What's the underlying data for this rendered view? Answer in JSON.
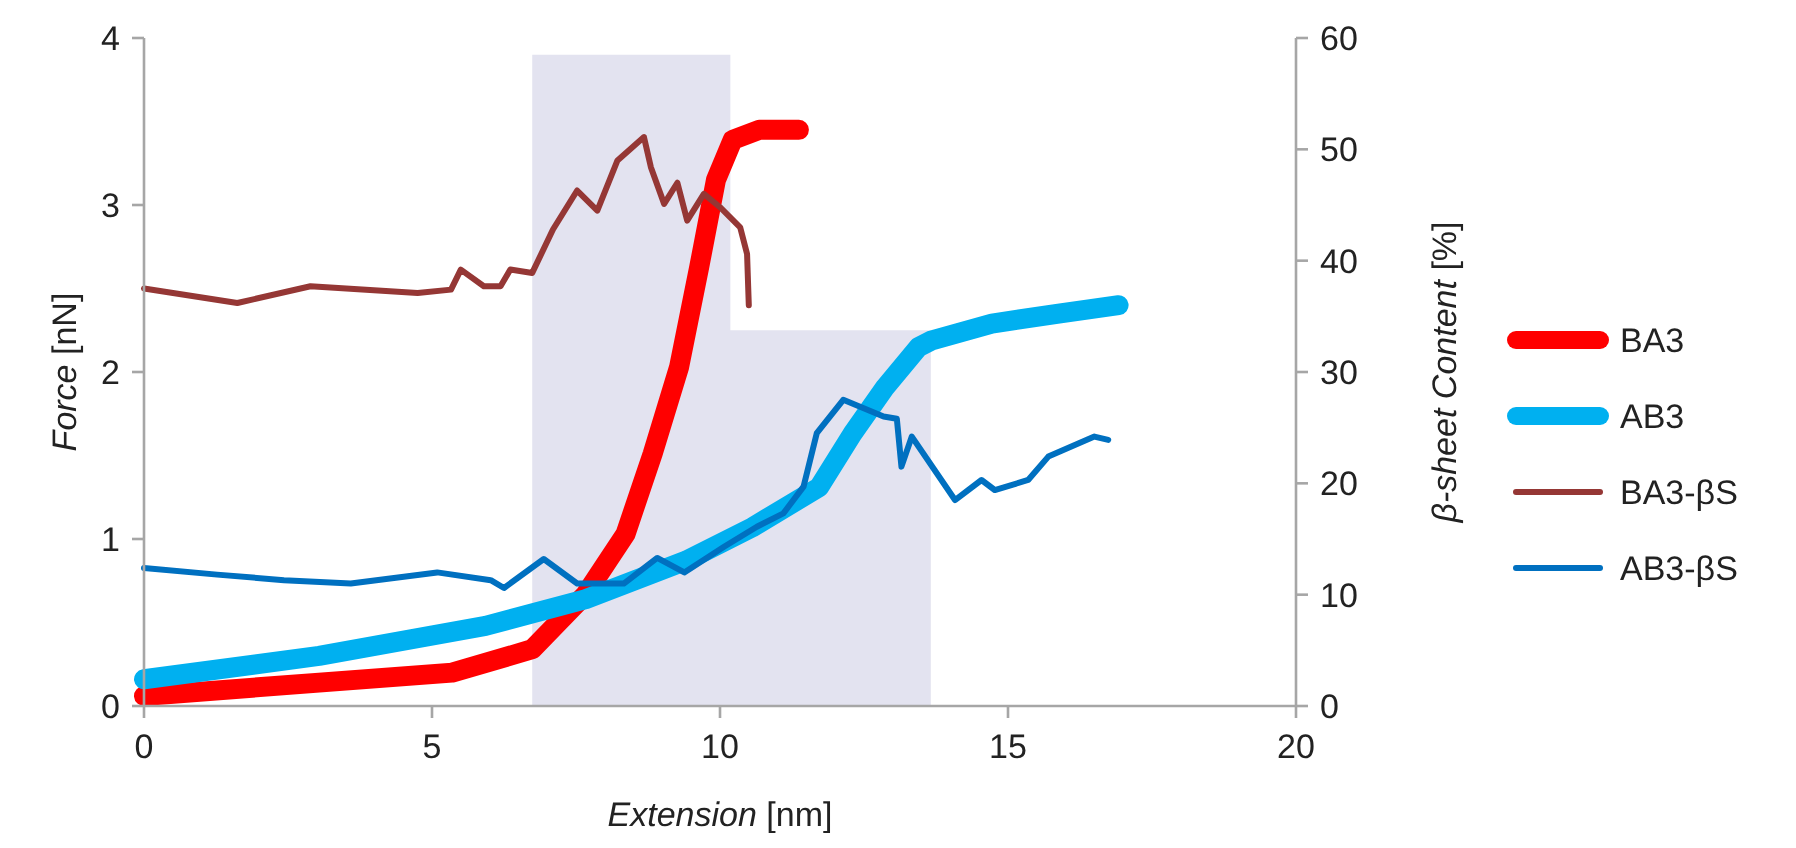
{
  "chart_data": {
    "type": "line",
    "xlabel": "Extension [nm]",
    "ylabel": "Force [nN]",
    "y2label": "β-sheet Content [%]",
    "xlim": [
      0,
      20
    ],
    "xticks": [
      0,
      5,
      10,
      15,
      20
    ],
    "ylim": [
      0,
      4
    ],
    "yticks": [
      0,
      1,
      2,
      3,
      4
    ],
    "y2lim": [
      0,
      60
    ],
    "y2ticks": [
      0,
      10,
      20,
      30,
      40,
      50,
      60
    ],
    "grid": false,
    "legend": "right",
    "marker": "none",
    "line_style": "solid",
    "series": [
      {
        "type": "area",
        "color": "#e3e3f0",
        "x": [
          6.74,
          6.74,
          10.18,
          10.18,
          13.66,
          13.66
        ],
        "values": [
          0,
          3.9,
          3.9,
          2.25,
          2.25,
          0
        ]
      },
      {
        "name": "BA3",
        "color": "#ff0000",
        "x": [
          0,
          3.04,
          5.35,
          6.74,
          7.67,
          8.36,
          8.83,
          9.29,
          9.64,
          9.93,
          10.22,
          10.68,
          11.37
        ],
        "values": [
          0.06,
          0.14,
          0.2,
          0.34,
          0.67,
          1.03,
          1.51,
          2.03,
          2.63,
          3.15,
          3.39,
          3.45,
          3.45
        ]
      },
      {
        "name": "AB3",
        "color": "#00b0f0",
        "x": [
          0,
          3.04,
          5.93,
          7.67,
          9.41,
          10.56,
          11.72,
          12.3,
          12.87,
          13.45,
          13.68,
          14.72,
          15.88,
          16.92
        ],
        "values": [
          0.16,
          0.3,
          0.48,
          0.64,
          0.87,
          1.07,
          1.31,
          1.63,
          1.91,
          2.15,
          2.19,
          2.29,
          2.35,
          2.4
        ]
      },
      {
        "name": "BA3-βS",
        "color": "#953735",
        "axis": "y2",
        "x": [
          0,
          1.62,
          2.89,
          4.75,
          5.33,
          5.5,
          5.9,
          6.19,
          6.36,
          6.74,
          7.1,
          7.52,
          7.87,
          8.22,
          8.68,
          8.8,
          9.03,
          9.26,
          9.43,
          9.72,
          10.0,
          10.35,
          10.47,
          10.5
        ],
        "values": [
          37.5,
          36.2,
          37.7,
          37.1,
          37.4,
          39.2,
          37.7,
          37.7,
          39.2,
          38.9,
          42.8,
          46.3,
          44.5,
          49.0,
          51.1,
          48.4,
          45.1,
          47.0,
          43.6,
          46.0,
          44.8,
          43.0,
          40.6,
          36.0
        ]
      },
      {
        "name": "AB3-βS",
        "color": "#0070c0",
        "axis": "y2",
        "x": [
          0,
          1.27,
          2.43,
          3.59,
          5.09,
          6.02,
          6.25,
          6.94,
          7.52,
          8.33,
          8.91,
          9.38,
          10.07,
          10.64,
          11.1,
          11.45,
          11.68,
          12.14,
          12.84,
          13.07,
          13.15,
          13.33,
          14.08,
          14.54,
          14.77,
          15.35,
          15.7,
          16.5,
          16.74
        ],
        "values": [
          12.4,
          11.8,
          11.3,
          11.0,
          12.0,
          11.3,
          10.6,
          13.2,
          11.0,
          11.0,
          13.3,
          12.0,
          14.3,
          16.1,
          17.3,
          19.7,
          24.5,
          27.5,
          26.0,
          25.8,
          21.5,
          24.2,
          18.5,
          20.3,
          19.4,
          20.3,
          22.4,
          24.2,
          23.9
        ]
      }
    ]
  }
}
